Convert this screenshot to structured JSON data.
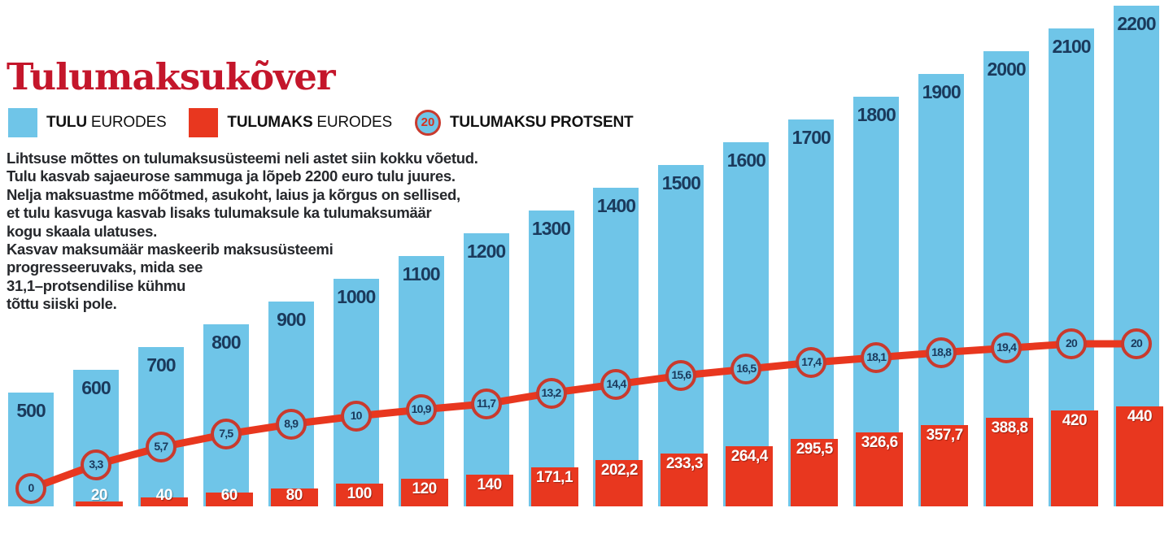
{
  "title": "Tulumaksukõver",
  "legend": [
    {
      "swatch": "blue-square",
      "strong": "TULU",
      "rest": "EURODES"
    },
    {
      "swatch": "red-square",
      "strong": "TULUMAKS",
      "rest": "EURODES"
    },
    {
      "swatch": "circle-badge",
      "circle_value": "20",
      "strong": "TULUMAKSU PROTSENT",
      "rest": ""
    }
  ],
  "description_lines": [
    "Lihtsuse mõttes on tulumaksusüsteemi neli astet siin kokku võetud.",
    "Tulu kasvab sajaeurose sammuga ja lõpeb 2200 euro tulu juures.",
    "Nelja maksuastme mõõtmed, asukoht, laius ja kõrgus on sellised,",
    "et tulu kasvuga kasvab lisaks tulumaksule ka tulumaksumäär",
    "kogu skaala ulatuses.",
    "Kasvav maksumäär maskeerib maksusüsteemi",
    "progresseeruvaks, mida see",
    "31,1–protsendilise kühmu",
    "tõttu siiski pole."
  ],
  "colors": {
    "income_bar": "#6fc5e8",
    "tax_bar": "#e8371f",
    "percent_line": "#e8371f",
    "circle_border": "#c93a2e",
    "circle_fill": "#6fc5e8",
    "bar_label_navy": "#1b3a5c",
    "title_red": "#c4162b"
  },
  "chart_data": {
    "type": "bar",
    "subtype": "overlay-bars-with-percent-line",
    "title": "Tulumaksukõver",
    "xlabel": "",
    "ylabel": "",
    "grid": false,
    "legend_position": "top-left",
    "categories": [
      500,
      600,
      700,
      800,
      900,
      1000,
      1100,
      1200,
      1300,
      1400,
      1500,
      1600,
      1700,
      1800,
      1900,
      2000,
      2100,
      2200
    ],
    "ylim": [
      0,
      2200
    ],
    "percent_ylim": [
      0,
      20
    ],
    "series": [
      {
        "name": "TULU EURODES",
        "kind": "bar",
        "color": "#6fc5e8",
        "values": [
          500,
          600,
          700,
          800,
          900,
          1000,
          1100,
          1200,
          1300,
          1400,
          1500,
          1600,
          1700,
          1800,
          1900,
          2000,
          2100,
          2200
        ],
        "labels": [
          "500",
          "600",
          "700",
          "800",
          "900",
          "1000",
          "1100",
          "1200",
          "1300",
          "1400",
          "1500",
          "1600",
          "1700",
          "1800",
          "1900",
          "2000",
          "2100",
          "2200"
        ]
      },
      {
        "name": "TULUMAKS EURODES",
        "kind": "bar",
        "color": "#e8371f",
        "values": [
          0,
          20,
          40,
          60,
          80,
          100,
          120,
          140,
          171.1,
          202.2,
          233.3,
          264.4,
          295.5,
          326.6,
          357.7,
          388.8,
          420,
          440
        ],
        "labels": [
          "",
          "20",
          "40",
          "60",
          "80",
          "100",
          "120",
          "140",
          "171,1",
          "202,2",
          "233,3",
          "264,4",
          "295,5",
          "326,6",
          "357,7",
          "388,8",
          "420",
          "440"
        ]
      },
      {
        "name": "TULUMAKSU PROTSENT",
        "kind": "line-with-points",
        "color": "#e8371f",
        "values": [
          0,
          3.3,
          5.7,
          7.5,
          8.9,
          10,
          10.9,
          11.7,
          13.2,
          14.4,
          15.6,
          16.5,
          17.4,
          18.1,
          18.8,
          19.4,
          20,
          20
        ],
        "labels": [
          "0",
          "3,3",
          "5,7",
          "7,5",
          "8,9",
          "10",
          "10,9",
          "11,7",
          "13,2",
          "14,4",
          "15,6",
          "16,5",
          "17,4",
          "18,1",
          "18,8",
          "19,4",
          "20",
          "20"
        ]
      }
    ]
  }
}
